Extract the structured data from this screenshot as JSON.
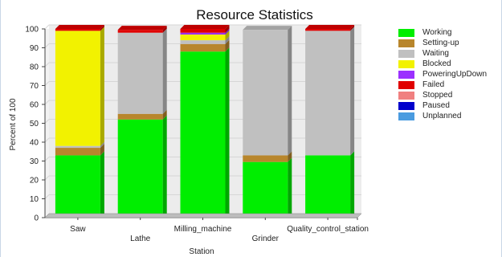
{
  "chart_data": {
    "type": "bar",
    "stacked": true,
    "title": "Resource Statistics",
    "xlabel": "Station",
    "ylabel": "Percent of 100",
    "ylim": [
      0,
      100
    ],
    "yticks": [
      0,
      10,
      20,
      30,
      40,
      50,
      60,
      70,
      80,
      90,
      100
    ],
    "grid": true,
    "legend_position": "right",
    "categories": [
      "Saw",
      "Lathe",
      "Milling_machine",
      "Grinder",
      "Quality_control_station"
    ],
    "series": [
      {
        "name": "Working",
        "color": "#00ee00",
        "values": [
          33,
          52,
          88,
          29.5,
          33
        ]
      },
      {
        "name": "Setting-up",
        "color": "#b8862c",
        "values": [
          4,
          3,
          4,
          3.5,
          0
        ]
      },
      {
        "name": "Waiting",
        "color": "#c0c0c0",
        "values": [
          1,
          43,
          2,
          66.5,
          66
        ]
      },
      {
        "name": "Blocked",
        "color": "#f2f200",
        "values": [
          61,
          0,
          3,
          0,
          0
        ]
      },
      {
        "name": "PoweringUpDown",
        "color": "#9b30ff",
        "values": [
          0,
          0,
          1,
          0,
          0
        ]
      },
      {
        "name": "Failed",
        "color": "#e00000",
        "values": [
          1,
          1.5,
          2,
          0,
          1
        ]
      },
      {
        "name": "Stopped",
        "color": "#f08080",
        "values": [
          0,
          0,
          0,
          0,
          0
        ]
      },
      {
        "name": "Paused",
        "color": "#0000cc",
        "values": [
          0,
          0,
          0,
          0,
          0
        ]
      },
      {
        "name": "Unplanned",
        "color": "#4a9be0",
        "values": [
          0,
          0,
          0,
          0,
          0
        ]
      }
    ]
  }
}
